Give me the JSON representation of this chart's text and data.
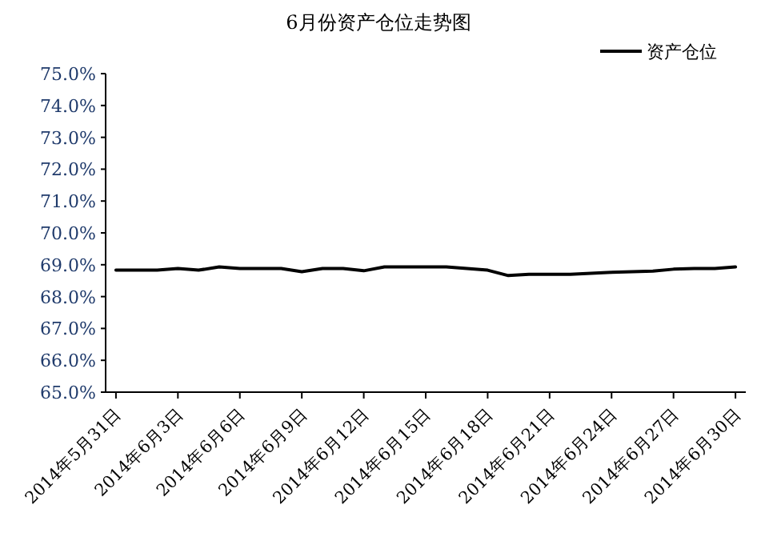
{
  "chart_data": {
    "type": "line",
    "title": "6月份资产仓位走势图",
    "categories": [
      "2014年5月31日",
      null,
      null,
      "2014年6月3日",
      null,
      null,
      "2014年6月6日",
      null,
      null,
      "2014年6月9日",
      null,
      null,
      "2014年6月12日",
      null,
      null,
      "2014年6月15日",
      null,
      null,
      "2014年6月18日",
      null,
      null,
      "2014年6月21日",
      null,
      null,
      "2014年6月24日",
      null,
      null,
      "2014年6月27日",
      null,
      null,
      "2014年6月30日"
    ],
    "series": [
      {
        "name": "资产仓位",
        "color": "#000000",
        "values": [
          68.83,
          68.83,
          68.83,
          68.88,
          68.83,
          68.93,
          68.88,
          68.88,
          68.88,
          68.78,
          68.88,
          68.88,
          68.81,
          68.93,
          68.93,
          68.93,
          68.93,
          68.88,
          68.83,
          68.66,
          68.7,
          68.7,
          68.7,
          68.73,
          68.76,
          68.78,
          68.8,
          68.86,
          68.88,
          68.88,
          68.93
        ]
      }
    ],
    "ylim": [
      65,
      75
    ],
    "yticks": [
      {
        "value": 65,
        "label": "65.0%"
      },
      {
        "value": 66,
        "label": "66.0%"
      },
      {
        "value": 67,
        "label": "67.0%"
      },
      {
        "value": 68,
        "label": "68.0%"
      },
      {
        "value": 69,
        "label": "69.0%"
      },
      {
        "value": 70,
        "label": "70.0%"
      },
      {
        "value": 71,
        "label": "71.0%"
      },
      {
        "value": 72,
        "label": "72.0%"
      },
      {
        "value": 73,
        "label": "73.0%"
      },
      {
        "value": 74,
        "label": "74.0%"
      },
      {
        "value": 75,
        "label": "75.0%"
      }
    ],
    "grid": false,
    "legend": "top right",
    "marker": "none",
    "line_style": "solid"
  }
}
